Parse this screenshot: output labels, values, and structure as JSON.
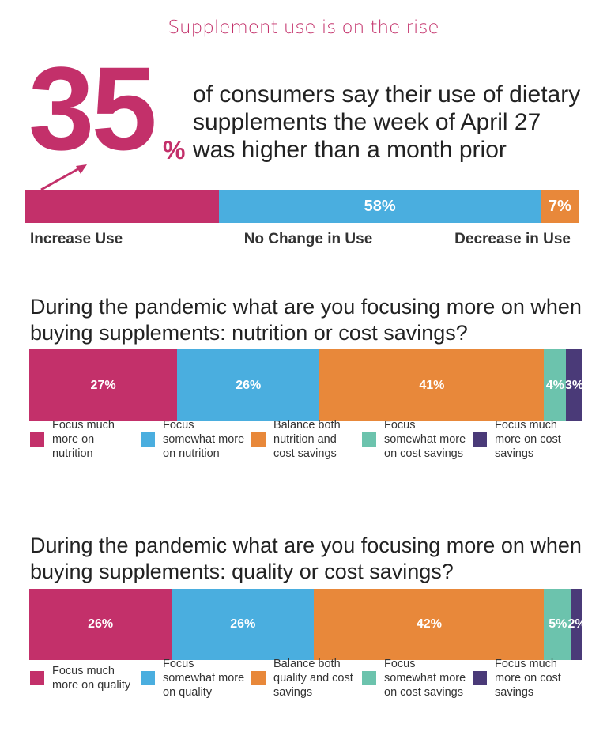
{
  "chart_data": [
    {
      "type": "stacked-bar",
      "title": "Supplement use is on the rise",
      "highlight": "35",
      "highlight_unit": "%",
      "subtitle": "of consumers say their use of dietary supplements the week of April 27 was higher than a month prior",
      "series": [
        {
          "name": "Increase Use",
          "color": "#c3306a",
          "values": [
            35
          ],
          "value_labels": [
            null
          ]
        },
        {
          "name": "No Change in Use",
          "color": "#4aaedf",
          "values": [
            58
          ],
          "value_labels": [
            "58%"
          ]
        },
        {
          "name": "Decrease in Use",
          "color": "#e8883a",
          "values": [
            7
          ],
          "value_labels": [
            "7%"
          ]
        }
      ]
    },
    {
      "type": "stacked-bar",
      "title": "During the pandemic what are you focusing more on when buying supplements: nutrition or cost savings?",
      "series": [
        {
          "name": "Focus much more on nutrition",
          "color": "#c3306a",
          "values": [
            27
          ],
          "value_labels": [
            "27%"
          ]
        },
        {
          "name": "Focus somewhat more on nutrition",
          "color": "#4aaedf",
          "values": [
            26
          ],
          "value_labels": [
            "26%"
          ]
        },
        {
          "name": "Balance both nutrition and cost savings",
          "color": "#e8883a",
          "values": [
            41
          ],
          "value_labels": [
            "41%"
          ]
        },
        {
          "name": "Focus somewhat more on cost savings",
          "color": "#6cc3ad",
          "values": [
            4
          ],
          "value_labels": [
            "4%"
          ]
        },
        {
          "name": "Focus much more on cost savings",
          "color": "#4a3a78",
          "values": [
            3
          ],
          "value_labels": [
            "3%"
          ]
        }
      ]
    },
    {
      "type": "stacked-bar",
      "title": "During the pandemic what are you focusing more on when buying supplements: quality or cost savings?",
      "series": [
        {
          "name": "Focus much more on quality",
          "color": "#c3306a",
          "values": [
            26
          ],
          "value_labels": [
            "26%"
          ]
        },
        {
          "name": "Focus somewhat more on quality",
          "color": "#4aaedf",
          "values": [
            26
          ],
          "value_labels": [
            "26%"
          ]
        },
        {
          "name": "Balance both quality and cost savings",
          "color": "#e8883a",
          "values": [
            42
          ],
          "value_labels": [
            "42%"
          ]
        },
        {
          "name": "Focus somewhat more on cost savings",
          "color": "#6cc3ad",
          "values": [
            5
          ],
          "value_labels": [
            "5%"
          ]
        },
        {
          "name": "Focus much more on cost savings",
          "color": "#4a3a78",
          "values": [
            2
          ],
          "value_labels": [
            "2%"
          ]
        }
      ]
    }
  ]
}
